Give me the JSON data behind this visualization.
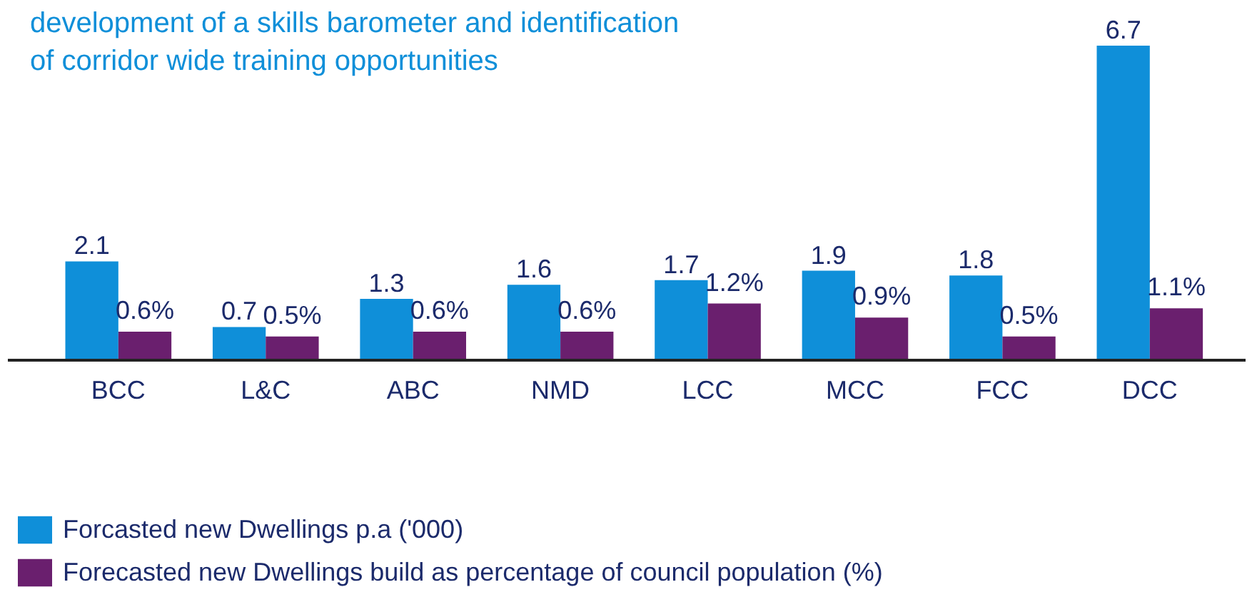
{
  "chart_data": {
    "type": "bar",
    "categories": [
      "BCC",
      "L&C",
      "ABC",
      "NMD",
      "LCC",
      "MCC",
      "FCC",
      "DCC"
    ],
    "series": [
      {
        "name": "Forcasted new Dwellings p.a ('000)",
        "color": "#0f8fd9",
        "values": [
          2.1,
          0.7,
          1.3,
          1.6,
          1.7,
          1.9,
          1.8,
          6.7
        ],
        "value_labels": [
          "2.1",
          "0.7",
          "1.3",
          "1.6",
          "1.7",
          "1.9",
          "1.8",
          "6.7"
        ]
      },
      {
        "name": "Forecasted new Dwellings build as percentage of council population (%)",
        "color": "#6a1f6e",
        "values": [
          0.6,
          0.5,
          0.6,
          0.6,
          1.2,
          0.9,
          0.5,
          1.1
        ],
        "value_labels": [
          "0.6%",
          "0.5%",
          "0.6%",
          "0.6%",
          "1.2%",
          "0.9%",
          "0.5%",
          "1.1%"
        ]
      }
    ],
    "annotations": [
      "development of a skills barometer and identification\nof corridor wide training opportunities"
    ],
    "legend": "bottom left"
  }
}
